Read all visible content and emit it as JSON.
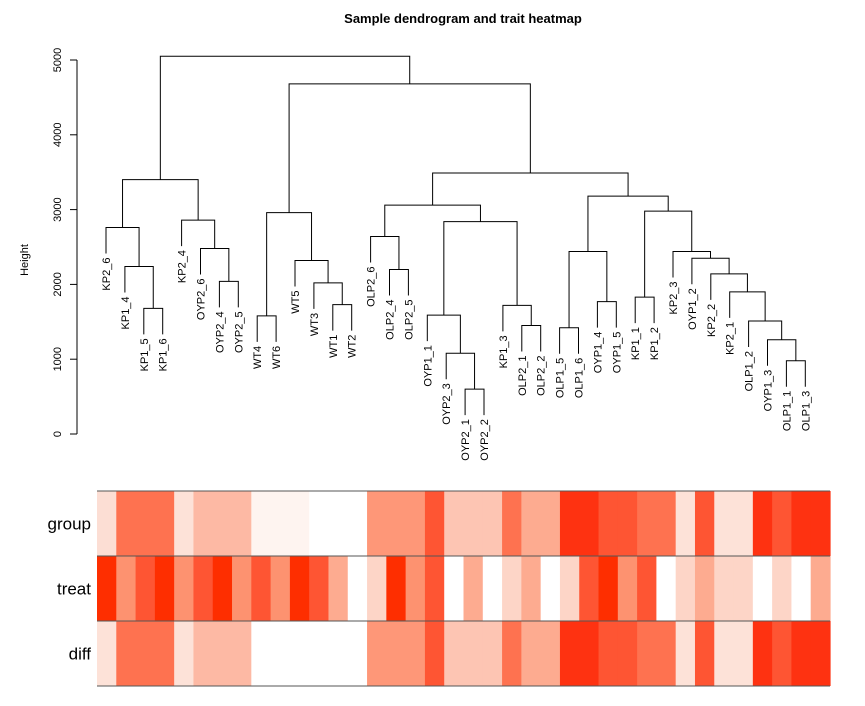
{
  "chart_data": {
    "type": "dendrogram-heatmap",
    "title": "Sample dendrogram and trait heatmap",
    "ylabel": "Height",
    "ylim": [
      0,
      5000
    ],
    "yticks": [
      0,
      1000,
      2000,
      3000,
      4000,
      5000
    ],
    "leaf_order": [
      "KP2_6",
      "KP1_4",
      "KP1_5",
      "KP1_6",
      "KP2_4",
      "OYP2_6",
      "OYP2_4",
      "OYP2_5",
      "WT4",
      "WT6",
      "WT5",
      "WT3",
      "WT1",
      "WT2",
      "OLP2_6",
      "OLP2_4",
      "OLP2_5",
      "OYP1_1",
      "OYP2_3",
      "OYP2_1",
      "OYP2_2",
      "KP1_3",
      "OLP2_1",
      "OLP2_2",
      "OLP1_5",
      "OLP1_6",
      "OYP1_4",
      "OYP1_5",
      "KP1_1",
      "KP1_2",
      "KP2_3",
      "OYP1_2",
      "KP2_2",
      "KP2_1",
      "OLP1_2",
      "OYP1_3",
      "OLP1_1",
      "OLP1_3"
    ],
    "merges": [
      {
        "a": "KP1_5",
        "b": "KP1_6",
        "height": 1680
      },
      {
        "a": "KP1_4",
        "b": 1,
        "height": 2240
      },
      {
        "a": "KP2_6",
        "b": 2,
        "height": 2760
      },
      {
        "a": "OYP2_4",
        "b": "OYP2_5",
        "height": 2040
      },
      {
        "a": "OYP2_6",
        "b": 4,
        "height": 2480
      },
      {
        "a": "KP2_4",
        "b": 5,
        "height": 2860
      },
      {
        "a": 3,
        "b": 6,
        "height": 3400
      },
      {
        "a": "WT4",
        "b": "WT6",
        "height": 1580
      },
      {
        "a": "WT1",
        "b": "WT2",
        "height": 1730
      },
      {
        "a": "WT3",
        "b": 9,
        "height": 2020
      },
      {
        "a": "WT5",
        "b": 10,
        "height": 2320
      },
      {
        "a": 8,
        "b": 11,
        "height": 2960
      },
      {
        "a": "OLP2_4",
        "b": "OLP2_5",
        "height": 2200
      },
      {
        "a": "OLP2_6",
        "b": 13,
        "height": 2640
      },
      {
        "a": "OYP2_1",
        "b": "OYP2_2",
        "height": 600
      },
      {
        "a": "OYP2_3",
        "b": 15,
        "height": 1080
      },
      {
        "a": "OYP1_1",
        "b": 16,
        "height": 1590
      },
      {
        "a": "OLP2_1",
        "b": "OLP2_2",
        "height": 1450
      },
      {
        "a": "KP1_3",
        "b": 18,
        "height": 1720
      },
      {
        "a": 17,
        "b": 19,
        "height": 2840
      },
      {
        "a": 14,
        "b": 20,
        "height": 3060
      },
      {
        "a": "OLP1_5",
        "b": "OLP1_6",
        "height": 1420
      },
      {
        "a": "OYP1_4",
        "b": "OYP1_5",
        "height": 1770
      },
      {
        "a": 22,
        "b": 23,
        "height": 2440
      },
      {
        "a": "KP1_1",
        "b": "KP1_2",
        "height": 1830
      },
      {
        "a": "OLP1_1",
        "b": "OLP1_3",
        "height": 980
      },
      {
        "a": "OYP1_3",
        "b": 26,
        "height": 1260
      },
      {
        "a": "OLP1_2",
        "b": 27,
        "height": 1510
      },
      {
        "a": "KP2_1",
        "b": 28,
        "height": 1900
      },
      {
        "a": "KP2_2",
        "b": 29,
        "height": 2140
      },
      {
        "a": "OYP1_2",
        "b": 30,
        "height": 2350
      },
      {
        "a": "KP2_3",
        "b": 31,
        "height": 2440
      },
      {
        "a": 25,
        "b": 32,
        "height": 2980
      },
      {
        "a": 24,
        "b": 33,
        "height": 3180
      },
      {
        "a": 21,
        "b": 34,
        "height": 3490
      },
      {
        "a": 12,
        "b": 35,
        "height": 4680
      },
      {
        "a": 7,
        "b": 36,
        "height": 5050
      }
    ],
    "traits": [
      "group",
      "treat",
      "diff"
    ],
    "trait_colors": {
      "group": [
        "#fcded4",
        "#fe7250",
        "#fe7250",
        "#fe7250",
        "#fde2d8",
        "#fdb9a4",
        "#fdb9a4",
        "#fdb9a4",
        "#fef4f0",
        "#fef4f0",
        "#fef4f0",
        "#ffffff",
        "#ffffff",
        "#ffffff",
        "#fe9778",
        "#fe9778",
        "#fe9778",
        "#fe5533",
        "#fdc5b3",
        "#fdc5b3",
        "#fdc5b3",
        "#fe7250",
        "#fdab90",
        "#fdab90",
        "#fe3211",
        "#fe3211",
        "#fe5533",
        "#fe5533",
        "#fe7250",
        "#fe7250",
        "#fde2d8",
        "#fe5533",
        "#fde2d8",
        "#fde2d8",
        "#fe3211",
        "#fe5533",
        "#fe3211",
        "#fe3211"
      ],
      "treat": [
        "#fe2e00",
        "#fd9270",
        "#fe5533",
        "#fe2e00",
        "#fd9270",
        "#fe5533",
        "#fe2e00",
        "#fd9270",
        "#fe5533",
        "#fd9270",
        "#fe2e00",
        "#fe5533",
        "#fdab90",
        "#ffffff",
        "#fdd5c7",
        "#fe2e00",
        "#fd9270",
        "#fe5533",
        "#ffffff",
        "#fdab90",
        "#ffffff",
        "#fdd5c7",
        "#fdab90",
        "#ffffff",
        "#fdd5c7",
        "#fe5533",
        "#fe2e00",
        "#fd9270",
        "#fe5533",
        "#ffffff",
        "#fdd5c7",
        "#fdab90",
        "#fdd5c7",
        "#fdd5c7",
        "#ffffff",
        "#fdd5c7",
        "#ffffff",
        "#fdab90"
      ],
      "diff": [
        "#fde2d8",
        "#fe7250",
        "#fe7250",
        "#fe7250",
        "#fde2d8",
        "#fdb9a4",
        "#fdb9a4",
        "#fdb9a4",
        "#ffffff",
        "#ffffff",
        "#ffffff",
        "#ffffff",
        "#ffffff",
        "#ffffff",
        "#fe9778",
        "#fe9778",
        "#fe9778",
        "#fe5533",
        "#fdc5b3",
        "#fdc5b3",
        "#fdc5b3",
        "#fe7250",
        "#fdab90",
        "#fdab90",
        "#fe3211",
        "#fe3211",
        "#fe5533",
        "#fe5533",
        "#fe7250",
        "#fe7250",
        "#fde2d8",
        "#fe5533",
        "#fde2d8",
        "#fde2d8",
        "#fe3211",
        "#fe5533",
        "#fe3211",
        "#fe3211"
      ]
    }
  }
}
